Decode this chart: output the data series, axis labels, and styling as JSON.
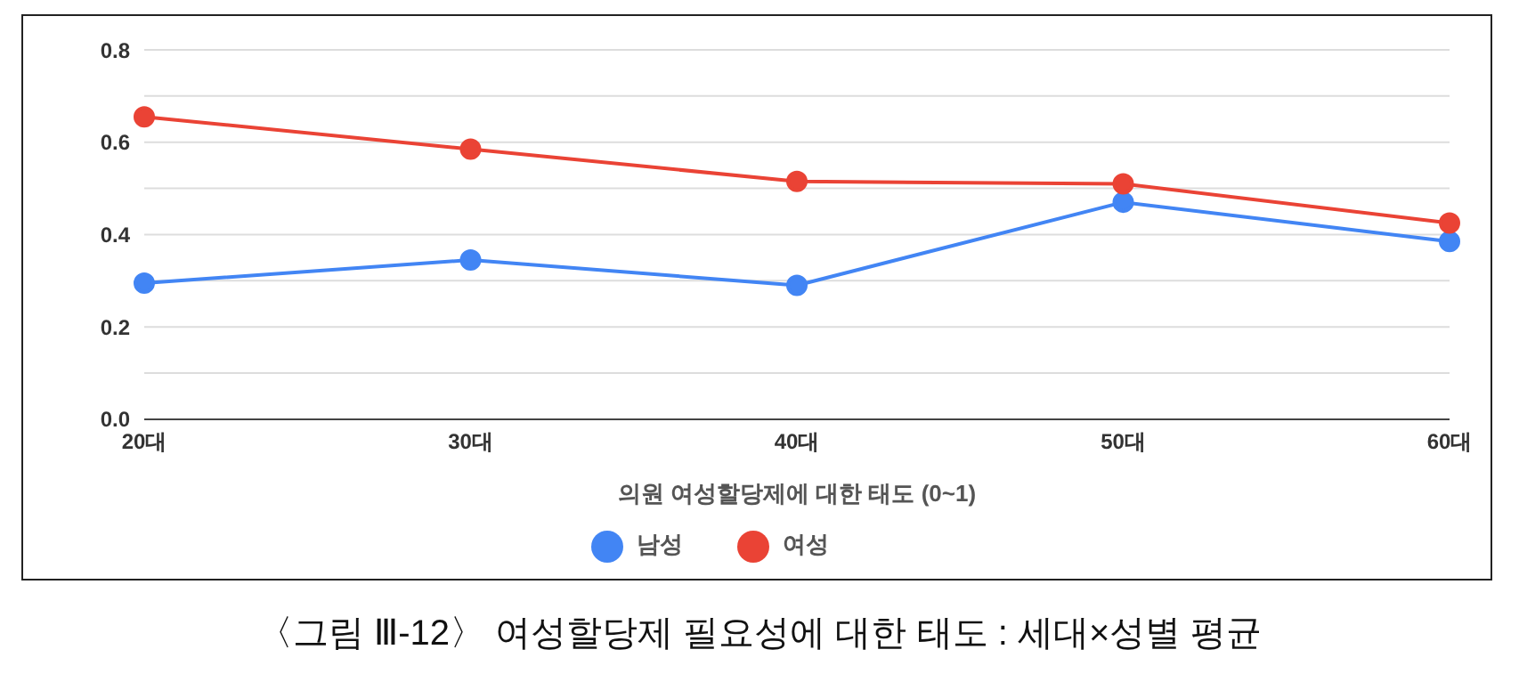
{
  "chart_data": {
    "type": "line",
    "xlabel": "의원 여성할당제에 대한 태도 (0~1)",
    "categories": [
      "20대",
      "30대",
      "40대",
      "50대",
      "60대"
    ],
    "series": [
      {
        "name": "남성",
        "color": "#4285f4",
        "values": [
          0.295,
          0.345,
          0.29,
          0.47,
          0.385
        ]
      },
      {
        "name": "여성",
        "color": "#ea4335",
        "values": [
          0.655,
          0.585,
          0.515,
          0.51,
          0.425
        ]
      }
    ],
    "ylim": [
      0,
      0.8
    ],
    "yticks": [
      {
        "value": 0,
        "label": "0.0"
      },
      {
        "value": 0.1,
        "label": null
      },
      {
        "value": 0.2,
        "label": "0.2"
      },
      {
        "value": 0.3,
        "label": null
      },
      {
        "value": 0.4,
        "label": "0.4"
      },
      {
        "value": 0.5,
        "label": null
      },
      {
        "value": 0.6,
        "label": "0.6"
      },
      {
        "value": 0.7,
        "label": null
      },
      {
        "value": 0.8,
        "label": "0.8"
      }
    ],
    "grid": "y",
    "legend": "bottom",
    "marker": "circle",
    "line_style": "solid",
    "annotations": [
      "〈그림 Ⅲ-12〉 여성할당제 필요성에 대한 태도 : 세대×성별 평균"
    ]
  }
}
